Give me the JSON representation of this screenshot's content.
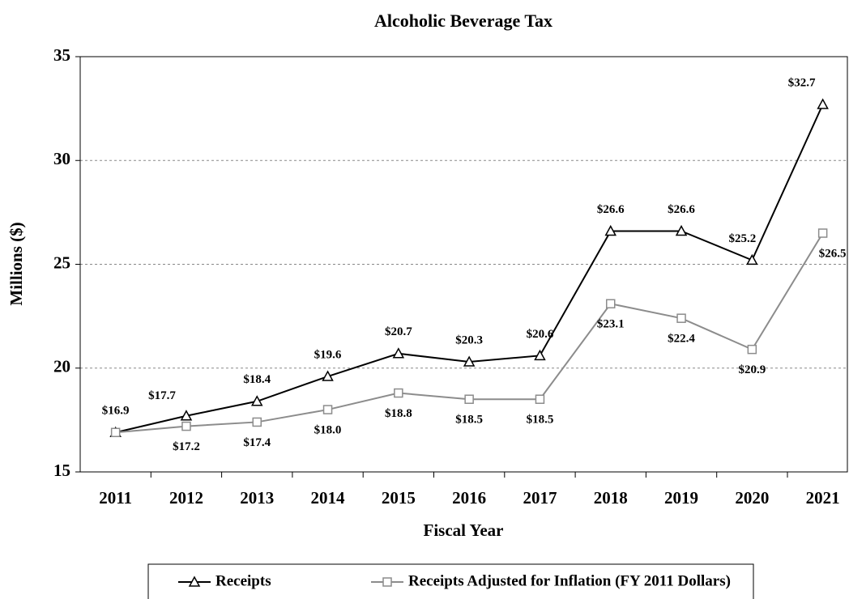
{
  "chart_data": {
    "type": "line",
    "title": "Alcoholic Beverage Tax",
    "x_label": "Fiscal Year",
    "y_label": "Millions ($)",
    "categories": [
      "2011",
      "2012",
      "2013",
      "2014",
      "2015",
      "2016",
      "2017",
      "2018",
      "2019",
      "2020",
      "2021"
    ],
    "series": [
      {
        "name": "Receipts",
        "color": "#000000",
        "marker": "triangle",
        "values": [
          16.9,
          17.7,
          18.4,
          19.6,
          20.7,
          20.3,
          20.6,
          26.6,
          26.6,
          25.2,
          32.7
        ],
        "value_labels": [
          "$16.9",
          "$17.7",
          "$18.4",
          "$19.6",
          "$20.7",
          "$20.3",
          "$20.6",
          "$26.6",
          "$26.6",
          "$25.2",
          "$32.7"
        ]
      },
      {
        "name": "Receipts Adjusted for Inflation (FY 2011 Dollars)",
        "color": "#8c8c8c",
        "marker": "square",
        "values": [
          16.9,
          17.2,
          17.4,
          18.0,
          18.8,
          18.5,
          18.5,
          23.1,
          22.4,
          20.9,
          26.5
        ],
        "value_labels": [
          null,
          "$17.2",
          "$17.4",
          "$18.0",
          "$18.8",
          "$18.5",
          "$18.5",
          "$23.1",
          "$22.4",
          "$20.9",
          "$26.5"
        ]
      }
    ],
    "ylim": [
      15,
      35
    ],
    "yticks": [
      15,
      20,
      25,
      30,
      35
    ],
    "grid": true,
    "legend": "bottom"
  }
}
